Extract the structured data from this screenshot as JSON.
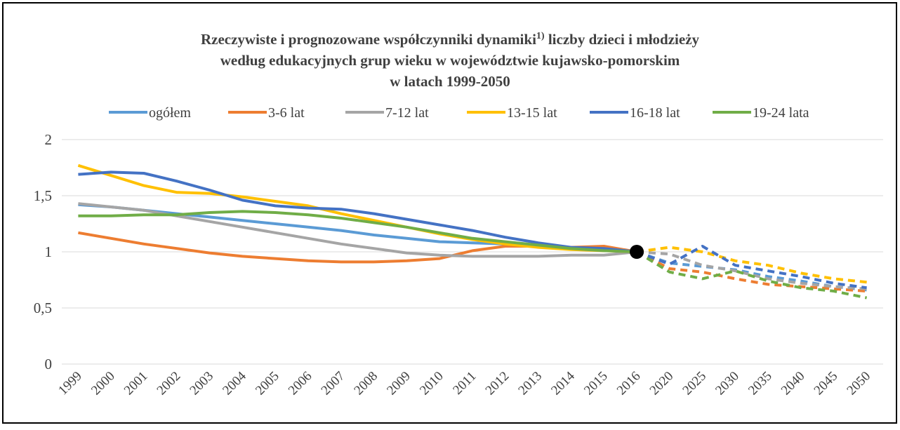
{
  "chart_data": {
    "type": "line",
    "title": [
      "Rzeczywiste i prognozowane współczynniki dynamiki",
      " liczby dzieci i młodzieży",
      "według edukacyjnych grup wieku w województwie kujawsko-pomorskim",
      "w latach 1999-2050"
    ],
    "title_note": "1)",
    "categories": [
      "1999",
      "2000",
      "2001",
      "2002",
      "2003",
      "2004",
      "2005",
      "2006",
      "2007",
      "2008",
      "2009",
      "2010",
      "2011",
      "2012",
      "2013",
      "2014",
      "2015",
      "2016",
      "2020",
      "2025",
      "2030",
      "2035",
      "2040",
      "2045",
      "2050"
    ],
    "dashed_from": "2016",
    "highlight": {
      "x": "2016",
      "y": 1,
      "color": "#000000"
    },
    "series": [
      {
        "name": "ogółem",
        "color": "#5b9bd5",
        "values": [
          1.42,
          1.4,
          1.37,
          1.34,
          1.31,
          1.28,
          1.25,
          1.22,
          1.19,
          1.15,
          1.12,
          1.09,
          1.08,
          1.07,
          1.05,
          1.03,
          1.02,
          1.0,
          0.9,
          0.87,
          0.84,
          0.78,
          0.74,
          0.69,
          0.66
        ]
      },
      {
        "name": "3-6 lat",
        "color": "#ed7d31",
        "values": [
          1.17,
          1.12,
          1.07,
          1.03,
          0.99,
          0.96,
          0.94,
          0.92,
          0.91,
          0.91,
          0.92,
          0.94,
          1.01,
          1.05,
          1.05,
          1.04,
          1.05,
          1.0,
          0.85,
          0.82,
          0.76,
          0.71,
          0.69,
          0.67,
          0.65
        ]
      },
      {
        "name": "7-12 lat",
        "color": "#a5a5a5",
        "values": [
          1.43,
          1.4,
          1.37,
          1.32,
          1.27,
          1.22,
          1.17,
          1.12,
          1.07,
          1.03,
          0.99,
          0.97,
          0.96,
          0.96,
          0.96,
          0.97,
          0.97,
          1.0,
          0.98,
          0.88,
          0.83,
          0.76,
          0.72,
          0.69,
          0.67
        ]
      },
      {
        "name": "13-15 lat",
        "color": "#ffc000",
        "values": [
          1.77,
          1.68,
          1.59,
          1.53,
          1.52,
          1.49,
          1.45,
          1.41,
          1.34,
          1.28,
          1.22,
          1.16,
          1.11,
          1.07,
          1.04,
          1.02,
          1.01,
          1.0,
          1.04,
          1.0,
          0.92,
          0.88,
          0.81,
          0.76,
          0.73
        ]
      },
      {
        "name": "16-18 lat",
        "color": "#4472c4",
        "values": [
          1.69,
          1.71,
          1.7,
          1.63,
          1.55,
          1.46,
          1.41,
          1.39,
          1.38,
          1.34,
          1.29,
          1.24,
          1.19,
          1.13,
          1.08,
          1.04,
          1.03,
          1.0,
          0.89,
          1.05,
          0.88,
          0.83,
          0.78,
          0.72,
          0.68
        ]
      },
      {
        "name": "19-24 lata",
        "color": "#70ad47",
        "values": [
          1.32,
          1.32,
          1.33,
          1.33,
          1.35,
          1.36,
          1.35,
          1.33,
          1.3,
          1.26,
          1.22,
          1.17,
          1.12,
          1.09,
          1.06,
          1.03,
          1.01,
          1.0,
          0.82,
          0.76,
          0.83,
          0.74,
          0.68,
          0.65,
          0.59
        ]
      }
    ],
    "ylim": [
      0,
      2
    ],
    "yticks": [
      0,
      {
        "value": 0.5,
        "label": "0,5"
      },
      1,
      {
        "value": 1.5,
        "label": "1,5"
      },
      2
    ],
    "grid": true,
    "legend": "top"
  }
}
